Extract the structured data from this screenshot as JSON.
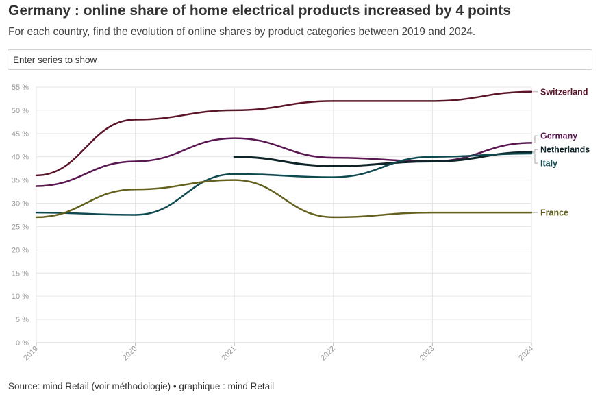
{
  "header": {
    "title": "Germany : online share of home electrical products increased by 4 points",
    "subtitle": "For each country, find the evolution of online shares by product categories between 2019 and 2024."
  },
  "search": {
    "placeholder": "Enter series to show"
  },
  "footer": {
    "source": "Source: mind Retail (voir méthodologie) • graphique : mind Retail"
  },
  "chart_data": {
    "type": "line",
    "title": "Germany : online share of home electrical products increased by 4 points",
    "xlabel": "",
    "ylabel": "",
    "x": [
      "2019",
      "2020",
      "2021",
      "2022",
      "2023",
      "2024"
    ],
    "y_ticks": [
      "0 %",
      "5 %",
      "10 %",
      "15 %",
      "20 %",
      "25 %",
      "30 %",
      "35 %",
      "40 %",
      "45 %",
      "50 %",
      "55 %"
    ],
    "ylim": [
      0,
      55
    ],
    "grid": true,
    "legend": "direct labels at line ends (right)",
    "series": [
      {
        "name": "Switzerland",
        "color": "#5c1428",
        "values": [
          36,
          48,
          50,
          52,
          52,
          54
        ]
      },
      {
        "name": "Germany",
        "color": "#5a1650",
        "values": [
          33.7,
          39,
          44,
          39.8,
          39,
          43
        ]
      },
      {
        "name": "Netherlands",
        "color": "#0e2428",
        "values": [
          null,
          null,
          40,
          38,
          39,
          41
        ]
      },
      {
        "name": "Italy",
        "color": "#0e4a50",
        "values": [
          28,
          27.5,
          36.3,
          35.6,
          40,
          40.7
        ]
      },
      {
        "name": "France",
        "color": "#64601e",
        "values": [
          27,
          33,
          35,
          27,
          28,
          28
        ]
      }
    ]
  }
}
